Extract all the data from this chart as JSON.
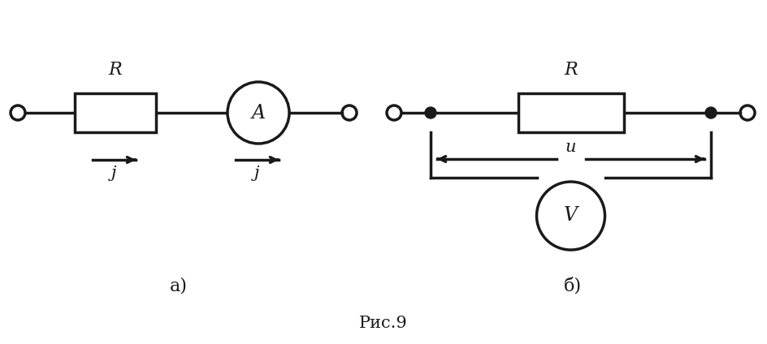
{
  "bg_color": "#ffffff",
  "line_color": "#1a1a1a",
  "lw": 2.5,
  "fig_caption": "Рис.9",
  "label_a": "а)",
  "label_b": "б)",
  "R_label": "R",
  "A_label": "A",
  "V_label": "V",
  "J_label": "ј",
  "U_label": "u"
}
